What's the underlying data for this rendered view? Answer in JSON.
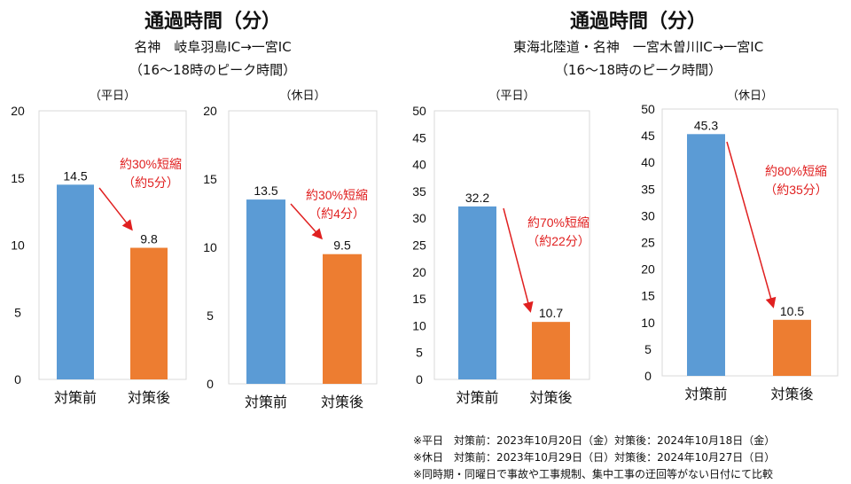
{
  "groups": [
    {
      "title": "通過時間（分）",
      "route": "名神　岐阜羽島IC→一宮IC",
      "period": "（16～18時のピーク時間）"
    },
    {
      "title": "通過時間（分）",
      "route": "東海北陸道・名神　一宮木曽川IC→一宮IC",
      "period": "（16～18時のピーク時間）"
    }
  ],
  "notes": [
    "※平日　対策前：2023年10月20日（金）対策後：2024年10月18日（金）",
    "※休日　対策前：2023年10月29日（日）対策後：2024年10月27日（日）",
    "※同時期・同曜日で事故や工事規制、集中工事の迂回等がない日付にて比較"
  ],
  "colors": {
    "before": "#5B9BD5",
    "after": "#ED7D31",
    "annotation": "#E02020"
  },
  "chart_data": [
    {
      "type": "bar",
      "title": "（平日）",
      "categories": [
        "対策前",
        "対策後"
      ],
      "values": [
        14.5,
        9.8
      ],
      "value_labels": [
        "14.5",
        "9.8"
      ],
      "ylim": [
        0,
        20
      ],
      "yticks": [
        0,
        5,
        10,
        15,
        20
      ],
      "annotation": [
        "約30%短縮",
        "（約5分）"
      ]
    },
    {
      "type": "bar",
      "title": "（休日）",
      "categories": [
        "対策前",
        "対策後"
      ],
      "values": [
        13.5,
        9.5
      ],
      "value_labels": [
        "13.5",
        "9.5"
      ],
      "ylim": [
        0,
        20
      ],
      "yticks": [
        0,
        5,
        10,
        15,
        20
      ],
      "annotation": [
        "約30%短縮",
        "（約4分）"
      ]
    },
    {
      "type": "bar",
      "title": "（平日）",
      "categories": [
        "対策前",
        "対策後"
      ],
      "values": [
        32.2,
        10.7
      ],
      "value_labels": [
        "32.2",
        "10.7"
      ],
      "ylim": [
        0,
        50
      ],
      "yticks": [
        0,
        5,
        10,
        15,
        20,
        25,
        30,
        35,
        40,
        45,
        50
      ],
      "annotation": [
        "約70%短縮",
        "（約22分）"
      ]
    },
    {
      "type": "bar",
      "title": "（休日）",
      "categories": [
        "対策前",
        "対策後"
      ],
      "values": [
        45.3,
        10.5
      ],
      "value_labels": [
        "45.3",
        "10.5"
      ],
      "ylim": [
        0,
        50
      ],
      "yticks": [
        0,
        5,
        10,
        15,
        20,
        25,
        30,
        35,
        40,
        45,
        50
      ],
      "annotation": [
        "約80%短縮",
        "（約35分）"
      ]
    }
  ]
}
